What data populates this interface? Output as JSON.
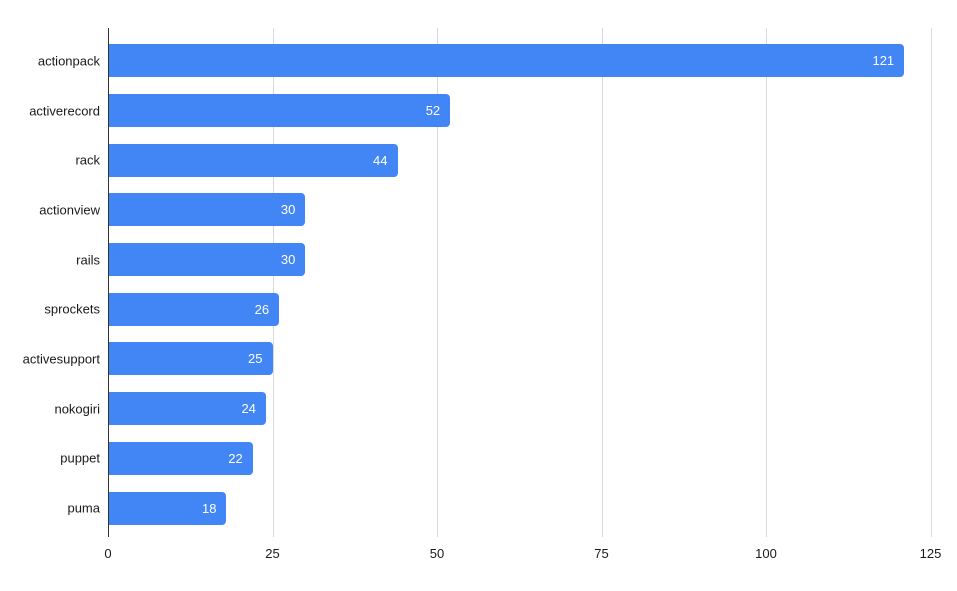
{
  "chart_data": {
    "type": "bar",
    "orientation": "horizontal",
    "title": "",
    "xlabel": "",
    "ylabel": "",
    "categories": [
      "actionpack",
      "activerecord",
      "rack",
      "actionview",
      "rails",
      "sprockets",
      "activesupport",
      "nokogiri",
      "puppet",
      "puma"
    ],
    "values": [
      121,
      52,
      44,
      30,
      30,
      26,
      25,
      24,
      22,
      18
    ],
    "value_labels": [
      "121",
      "52",
      "44",
      "30",
      "30",
      "26",
      "25",
      "24",
      "22",
      "18"
    ],
    "xticks": [
      0,
      25,
      50,
      75,
      100,
      125
    ],
    "xlim": [
      0,
      125
    ],
    "grid": "vertical-major-only",
    "legend_position": "none",
    "colors": {
      "bar": "#4285f4",
      "value_label": "#ffffff",
      "category_label": "#1a1a1a",
      "tick_label": "#1a1a1a",
      "gridline": "#d9d9d9",
      "axis_line": "#333333",
      "background": "#ffffff"
    }
  }
}
